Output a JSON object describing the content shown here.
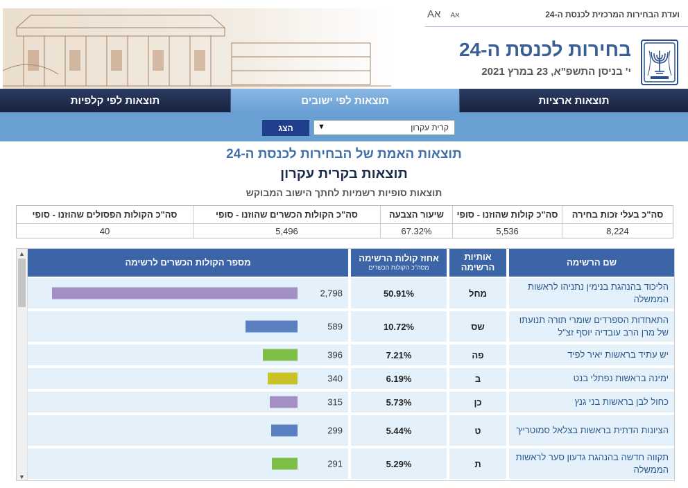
{
  "header": {
    "committee": "ועדת הבחירות המרכזית לכנסת ה-24",
    "font_large": "Aא",
    "font_small": "Aא",
    "title": "בחירות לכנסת ה-24",
    "date": "י' בניסן התשפ\"א, 23 במרץ 2021",
    "emblem_icon": "state-emblem-icon",
    "art": "knesset-building-illustration"
  },
  "nav": {
    "tabs": [
      {
        "label": "תוצאות ארציות",
        "active": false
      },
      {
        "label": "תוצאות לפי ישובים",
        "active": true
      },
      {
        "label": "תוצאות לפי קלפיות",
        "active": false
      }
    ]
  },
  "selector": {
    "value": "קרית עקרון",
    "button": "הצג"
  },
  "titles": {
    "main": "תוצאות האמת של הבחירות לכנסת ה-24",
    "city": "תוצאות בקרית עקרון",
    "subtitle": "תוצאות סופיות רשמיות לחתך הישוב המבוקש"
  },
  "summary": {
    "eligible_label": "סה\"כ בעלי זכות בחירה",
    "eligible_value": "8,224",
    "total_votes_label": "סה\"כ קולות שהוזנו - סופי",
    "total_votes_value": "5,536",
    "turnout_label": "שיעור הצבעה",
    "turnout_value": "67.32%",
    "valid_label": "סה\"כ הקולות הכשרים שהוזנו - סופי",
    "valid_value": "5,496",
    "invalid_label": "סה\"כ הקולות הפסולים שהוזנו - סופי",
    "invalid_value": "40"
  },
  "results": {
    "headers": {
      "name": "שם הרשימה",
      "letters_1": "אותיות",
      "letters_2": "הרשימה",
      "percent": "אחוז קולות הרשימה",
      "percent_sub": "מסה\"כ הקולות הכשרים",
      "votes": "מספר הקולות הכשרים לרשימה"
    },
    "max_votes": 2798,
    "rows": [
      {
        "name": "הליכוד בהנהגת בנימין נתניהו לראשות הממשלה",
        "letters": "מחל",
        "percent": "50.91%",
        "votes": "2,798",
        "vote_value": 2798,
        "color": "#a48fc4"
      },
      {
        "name": "התאחדות הספרדים שומרי תורה תנועתו של מרן הרב עובדיה יוסף זצ\"ל",
        "letters": "שס",
        "percent": "10.72%",
        "votes": "589",
        "vote_value": 589,
        "color": "#5a80c2"
      },
      {
        "name": "יש עתיד בראשות יאיר לפיד",
        "letters": "פה",
        "percent": "7.21%",
        "votes": "396",
        "vote_value": 396,
        "color": "#7dbe45"
      },
      {
        "name": "ימינה בראשות נפתלי בנט",
        "letters": "ב",
        "percent": "6.19%",
        "votes": "340",
        "vote_value": 340,
        "color": "#c8c227"
      },
      {
        "name": "כחול לבן בראשות בני גנץ",
        "letters": "כן",
        "percent": "5.73%",
        "votes": "315",
        "vote_value": 315,
        "color": "#a48fc4"
      },
      {
        "name": "הציונות הדתית בראשות בצלאל סמוטריץ'",
        "letters": "ט",
        "percent": "5.44%",
        "votes": "299",
        "vote_value": 299,
        "color": "#5a80c2"
      },
      {
        "name": "תקווה חדשה בהנהגת גדעון סער לראשות הממשלה",
        "letters": "ת",
        "percent": "5.29%",
        "votes": "291",
        "vote_value": 291,
        "color": "#7dbe45"
      }
    ]
  }
}
